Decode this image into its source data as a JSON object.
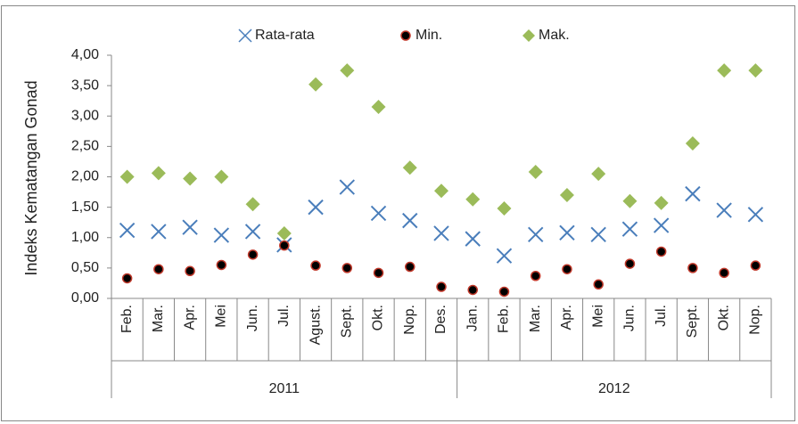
{
  "chart_data": {
    "type": "scatter",
    "y_label": "Indeks  Kematangan Gonad",
    "groups": [
      {
        "name": "2011",
        "categories": [
          "Feb.",
          "Mar.",
          "Apr.",
          "Mei",
          "Jun.",
          "Jul.",
          "Agust.",
          "Sept.",
          "Okt.",
          "Nop.",
          "Des."
        ]
      },
      {
        "name": "2012",
        "categories": [
          "Jan.",
          "Feb.",
          "Mar.",
          "Apr.",
          "Mei",
          "Jun.",
          "Jul.",
          "Sept.",
          "Okt.",
          "Nop."
        ]
      }
    ],
    "series": [
      {
        "name": "Rata-rata",
        "color": "#4a7ebb",
        "marker": "x",
        "values": [
          1.12,
          1.1,
          1.17,
          1.04,
          1.1,
          0.88,
          1.5,
          1.83,
          1.4,
          1.28,
          1.07,
          0.98,
          0.7,
          1.05,
          1.08,
          1.05,
          1.14,
          1.2,
          1.72,
          1.45,
          1.38
        ]
      },
      {
        "name": "Min.",
        "color": "#000000",
        "marker": "circle",
        "values": [
          0.33,
          0.48,
          0.45,
          0.55,
          0.72,
          0.87,
          0.54,
          0.5,
          0.42,
          0.52,
          0.19,
          0.14,
          0.11,
          0.37,
          0.48,
          0.23,
          0.57,
          0.77,
          0.5,
          0.42,
          0.54
        ]
      },
      {
        "name": "Mak.",
        "color": "#9bbb59",
        "marker": "diamond",
        "values": [
          2.0,
          2.06,
          1.97,
          2.0,
          1.55,
          1.07,
          3.52,
          3.75,
          3.15,
          2.15,
          1.77,
          1.63,
          1.48,
          2.08,
          1.7,
          2.05,
          1.6,
          1.57,
          2.55,
          3.75,
          3.75
        ]
      }
    ],
    "ylim": [
      0,
      4
    ],
    "yticks": [
      {
        "value": 0,
        "label": "0,00"
      },
      {
        "value": 0.5,
        "label": "0,50"
      },
      {
        "value": 1,
        "label": "1,00"
      },
      {
        "value": 1.5,
        "label": "1,50"
      },
      {
        "value": 2,
        "label": "2,00"
      },
      {
        "value": 2.5,
        "label": "2,50"
      },
      {
        "value": 3,
        "label": "3,00"
      },
      {
        "value": 3.5,
        "label": "3,50"
      },
      {
        "value": 4,
        "label": "4,00"
      }
    ],
    "legend": "top"
  }
}
